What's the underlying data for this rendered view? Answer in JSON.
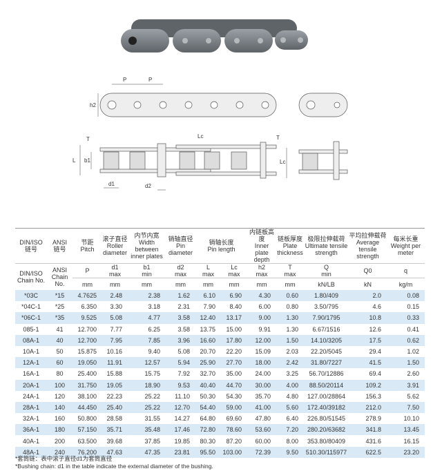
{
  "header": {
    "din": {
      "cn": "链号",
      "en_top": "DIN/ISO",
      "en_bottom": "DIN/ISO Chain No."
    },
    "ansi": {
      "cn": "链号",
      "en_top": "ANSI",
      "en_bottom": "ANSI Chain No."
    },
    "columns": [
      {
        "cn": "节距",
        "en": "Pitch",
        "symbol": "P",
        "sub": "",
        "unit": "mm"
      },
      {
        "cn": "滚子直径",
        "en": "Roller diameter",
        "symbol": "d1",
        "sub": "max",
        "unit": "mm"
      },
      {
        "cn": "内节内宽",
        "en": "Width between inner plates",
        "symbol": "b1",
        "sub": "min",
        "unit": "mm"
      },
      {
        "cn": "销轴直径",
        "en": "Pin diameter",
        "symbol": "d2",
        "sub": "max",
        "unit": "mm"
      },
      {
        "cn": "销轴长度",
        "en": "Pin length",
        "symbol": "L",
        "sub": "max",
        "unit": "mm",
        "symbol2": "Lc",
        "sub2": "max",
        "unit2": "mm"
      },
      {
        "cn": "内链板高度",
        "en": "Inner plate depth",
        "symbol": "h2",
        "sub": "max",
        "unit": "mm"
      },
      {
        "cn": "链板厚度",
        "en": "Plate thickness",
        "symbol": "T",
        "sub": "max",
        "unit": "mm"
      },
      {
        "cn": "极限拉伸载荷",
        "en": "Ultimate tensile strength",
        "symbol": "Q",
        "sub": "min",
        "unit": "kN/LB"
      },
      {
        "cn": "平均拉伸载荷",
        "en": "Average tensile strength",
        "symbol": "Q0",
        "sub": "",
        "unit": "kN"
      },
      {
        "cn": "每米长重",
        "en": "Weight per meter",
        "symbol": "q",
        "sub": "",
        "unit": "kg/m"
      }
    ]
  },
  "rows": [
    [
      "*03C",
      "*15",
      "4.7625",
      "2.48",
      "2.38",
      "1.62",
      "6.10",
      "6.90",
      "4.30",
      "0.60",
      "1.80/409",
      "2.0",
      "0.08"
    ],
    [
      "*04C-1",
      "*25",
      "6.350",
      "3.30",
      "3.18",
      "2.31",
      "7.90",
      "8.40",
      "6.00",
      "0.80",
      "3.50/795",
      "4.6",
      "0.15"
    ],
    [
      "*06C-1",
      "*35",
      "9.525",
      "5.08",
      "4.77",
      "3.58",
      "12.40",
      "13.17",
      "9.00",
      "1.30",
      "7.90/1795",
      "10.8",
      "0.33"
    ],
    [
      "085-1",
      "41",
      "12.700",
      "7.77",
      "6.25",
      "3.58",
      "13.75",
      "15.00",
      "9.91",
      "1.30",
      "6.67/1516",
      "12.6",
      "0.41"
    ],
    [
      "08A-1",
      "40",
      "12.700",
      "7.95",
      "7.85",
      "3.96",
      "16.60",
      "17.80",
      "12.00",
      "1.50",
      "14.10/3205",
      "17.5",
      "0.62"
    ],
    [
      "10A-1",
      "50",
      "15.875",
      "10.16",
      "9.40",
      "5.08",
      "20.70",
      "22.20",
      "15.09",
      "2.03",
      "22.20/5045",
      "29.4",
      "1.02"
    ],
    [
      "12A-1",
      "60",
      "19.050",
      "11.91",
      "12.57",
      "5.94",
      "25.90",
      "27.70",
      "18.00",
      "2.42",
      "31.80/7227",
      "41.5",
      "1.50"
    ],
    [
      "16A-1",
      "80",
      "25.400",
      "15.88",
      "15.75",
      "7.92",
      "32.70",
      "35.00",
      "24.00",
      "3.25",
      "56.70/12886",
      "69.4",
      "2.60"
    ],
    [
      "20A-1",
      "100",
      "31.750",
      "19.05",
      "18.90",
      "9.53",
      "40.40",
      "44.70",
      "30.00",
      "4.00",
      "88.50/20114",
      "109.2",
      "3.91"
    ],
    [
      "24A-1",
      "120",
      "38.100",
      "22.23",
      "25.22",
      "11.10",
      "50.30",
      "54.30",
      "35.70",
      "4.80",
      "127.00/28864",
      "156.3",
      "5.62"
    ],
    [
      "28A-1",
      "140",
      "44.450",
      "25.40",
      "25.22",
      "12.70",
      "54.40",
      "59.00",
      "41.00",
      "5.60",
      "172.40/39182",
      "212.0",
      "7.50"
    ],
    [
      "32A-1",
      "160",
      "50.800",
      "28.58",
      "31.55",
      "14.27",
      "64.80",
      "69.60",
      "47.80",
      "6.40",
      "226.80/51545",
      "278.9",
      "10.10"
    ],
    [
      "36A-1",
      "180",
      "57.150",
      "35.71",
      "35.48",
      "17.46",
      "72.80",
      "78.60",
      "53.60",
      "7.20",
      "280.20/63682",
      "341.8",
      "13.45"
    ],
    [
      "40A-1",
      "200",
      "63.500",
      "39.68",
      "37.85",
      "19.85",
      "80.30",
      "87.20",
      "60.00",
      "8.00",
      "353.80/80409",
      "431.6",
      "16.15"
    ],
    [
      "48A-1",
      "240",
      "76.200",
      "47.63",
      "47.35",
      "23.81",
      "95.50",
      "103.00",
      "72.39",
      "9.50",
      "510.30/115977",
      "622.5",
      "23.20"
    ]
  ],
  "footnotes": {
    "cn": "*套筒链：表中滚子直径d1为套筒直径",
    "en": "*Bushing chain: d1 in the table indicate the external diameter of the bushing."
  },
  "drawing_labels": {
    "p1": "P",
    "p2": "P",
    "h2": "h2",
    "t1": "T",
    "lc1": "Lc",
    "t2": "T",
    "l": "L",
    "b1": "b1",
    "lc2": "Lc",
    "d1": "d1",
    "d2": "d2"
  },
  "colors": {
    "row_alt": "#d9e9f5",
    "chain": "#7d8287"
  }
}
